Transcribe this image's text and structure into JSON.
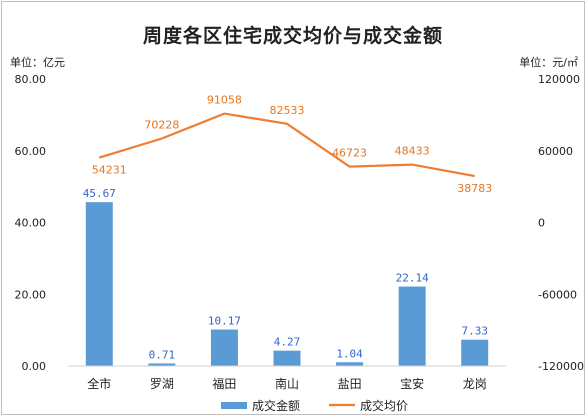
{
  "chart_data": {
    "type": "bar",
    "title": "周度各区住宅成交均价与成交金额",
    "left_unit": "单位：亿元",
    "right_unit": "单位：元/㎡",
    "categories": [
      "全市",
      "罗湖",
      "福田",
      "南山",
      "盐田",
      "宝安",
      "龙岗"
    ],
    "bar_labels": [
      "45.67",
      "0.71",
      "10.17",
      "4.27",
      "1.04",
      "22.14",
      "7.33"
    ],
    "line_labels": [
      "54231",
      "70228",
      "91058",
      "82533",
      "46723",
      "48433",
      "38783"
    ],
    "series": [
      {
        "name": "成交金额",
        "type": "bar",
        "axis": "left",
        "color": "#5b9bd5",
        "values": [
          45.67,
          0.71,
          10.17,
          4.27,
          1.04,
          22.14,
          7.33
        ]
      },
      {
        "name": "成交均价",
        "type": "line",
        "axis": "right",
        "color": "#ed7d31",
        "values": [
          54231,
          70228,
          91058,
          82533,
          46723,
          48433,
          38783
        ]
      }
    ],
    "y_left": {
      "ylim": [
        0,
        80
      ],
      "ticks": [
        "0.00",
        "20.00",
        "40.00",
        "60.00",
        "80.00"
      ],
      "tick_values": [
        0,
        20,
        40,
        60,
        80
      ]
    },
    "y_right": {
      "ylim": [
        -120000,
        120000
      ],
      "ticks": [
        "-120000",
        "-60000",
        "0",
        "60000",
        "120000"
      ],
      "tick_values": [
        -120000,
        -60000,
        0,
        60000,
        120000
      ]
    },
    "grid": false,
    "legend_position": "bottom"
  }
}
